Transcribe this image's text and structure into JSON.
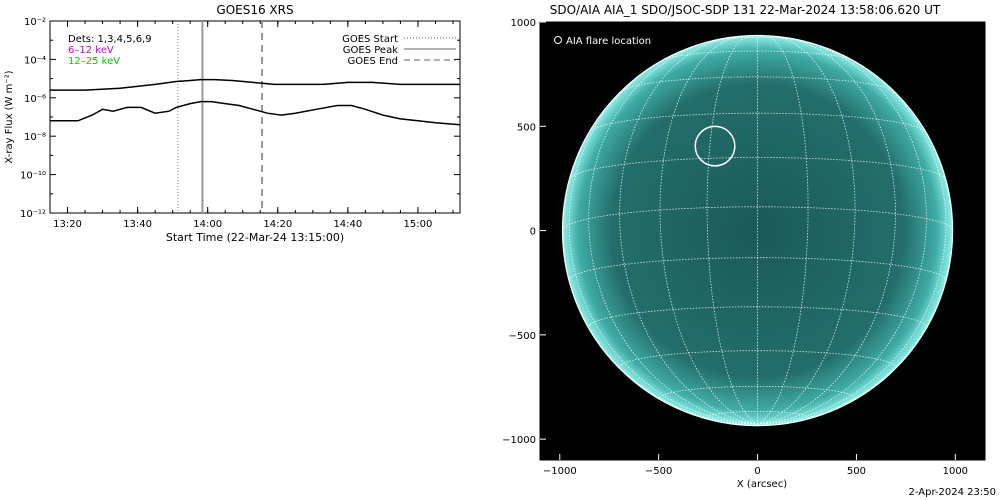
{
  "chart_data": [
    {
      "type": "line",
      "title": "GOES16 XRS",
      "xlabel": "Start Time (22-Mar-24 13:15:00)",
      "ylabel": "X-ray Flux (W m⁻²)",
      "ylim_log10": [
        -12,
        -2
      ],
      "y_scale": "log",
      "xlim_minutes_after_1315": [
        0,
        117
      ],
      "xticks": [
        "13:20",
        "13:40",
        "14:00",
        "14:20",
        "14:40",
        "15:00"
      ],
      "xtick_minutes_after_1315": [
        5,
        25,
        45,
        65,
        85,
        105
      ],
      "yticks": [
        "10⁻¹²",
        "10⁻¹⁰",
        "10⁻⁸",
        "10⁻⁶",
        "10⁻⁴",
        "10⁻²"
      ],
      "ytick_log10": [
        -12,
        -10,
        -8,
        -6,
        -4,
        -2
      ],
      "legend_left": [
        {
          "label": "Dets: 1,3,4,5,6,9",
          "color": "#000000"
        },
        {
          "label": "6–12 keV",
          "color": "#cc00cc"
        },
        {
          "label": "12–25 keV",
          "color": "#00cc00"
        }
      ],
      "legend_right": [
        {
          "label": "GOES Start",
          "style": "dotted"
        },
        {
          "label": "GOES Peak",
          "style": "solid"
        },
        {
          "label": "GOES End",
          "style": "dashed"
        }
      ],
      "markers": {
        "start_minutes": 36.5,
        "peak_minutes": 43.5,
        "end_minutes": 60.5
      },
      "series": [
        {
          "name": "long",
          "x_minutes": [
            0,
            10,
            20,
            30,
            36,
            40,
            43,
            47,
            52,
            58,
            64,
            70,
            78,
            85,
            92,
            100,
            108,
            117
          ],
          "log10_flux": [
            -5.6,
            -5.6,
            -5.5,
            -5.3,
            -5.15,
            -5.1,
            -5.05,
            -5.05,
            -5.1,
            -5.2,
            -5.3,
            -5.3,
            -5.3,
            -5.2,
            -5.2,
            -5.3,
            -5.3,
            -5.3
          ]
        },
        {
          "name": "short",
          "x_minutes": [
            0,
            8,
            12,
            15,
            18,
            22,
            26,
            30,
            34,
            36,
            40,
            43,
            46,
            50,
            54,
            58,
            62,
            66,
            70,
            76,
            82,
            86,
            90,
            95,
            100,
            105,
            110,
            117
          ],
          "log10_flux": [
            -7.2,
            -7.2,
            -6.9,
            -6.6,
            -6.7,
            -6.5,
            -6.5,
            -6.8,
            -6.7,
            -6.5,
            -6.3,
            -6.2,
            -6.2,
            -6.3,
            -6.4,
            -6.6,
            -6.8,
            -6.9,
            -6.8,
            -6.6,
            -6.4,
            -6.4,
            -6.6,
            -6.9,
            -7.1,
            -7.2,
            -7.3,
            -7.4
          ]
        }
      ]
    },
    {
      "type": "image",
      "title": "SDO/AIA AIA_1 SDO/JSOC-SDP 131 22-Mar-2024 13:58:06.620 UT",
      "xlabel": "X (arcsec)",
      "ylabel": "",
      "xlim": [
        -1100,
        1150
      ],
      "ylim": [
        -1100,
        1000
      ],
      "xticks": [
        -1000,
        -500,
        0,
        500,
        1000
      ],
      "yticks": [
        -1000,
        -500,
        0,
        500,
        1000
      ],
      "solar_radius_arcsec": 960,
      "flare_location_label": "AIA flare location",
      "flare_location_arcsec": [
        -215,
        405
      ],
      "flare_circle_radius_arcsec": 100,
      "colors": {
        "disk": "#2a8f8c",
        "limb": "#7be8e0",
        "background": "#000000",
        "grid": "#ffffff"
      }
    }
  ],
  "footer": {
    "date": "2-Apr-2024 23:50"
  }
}
